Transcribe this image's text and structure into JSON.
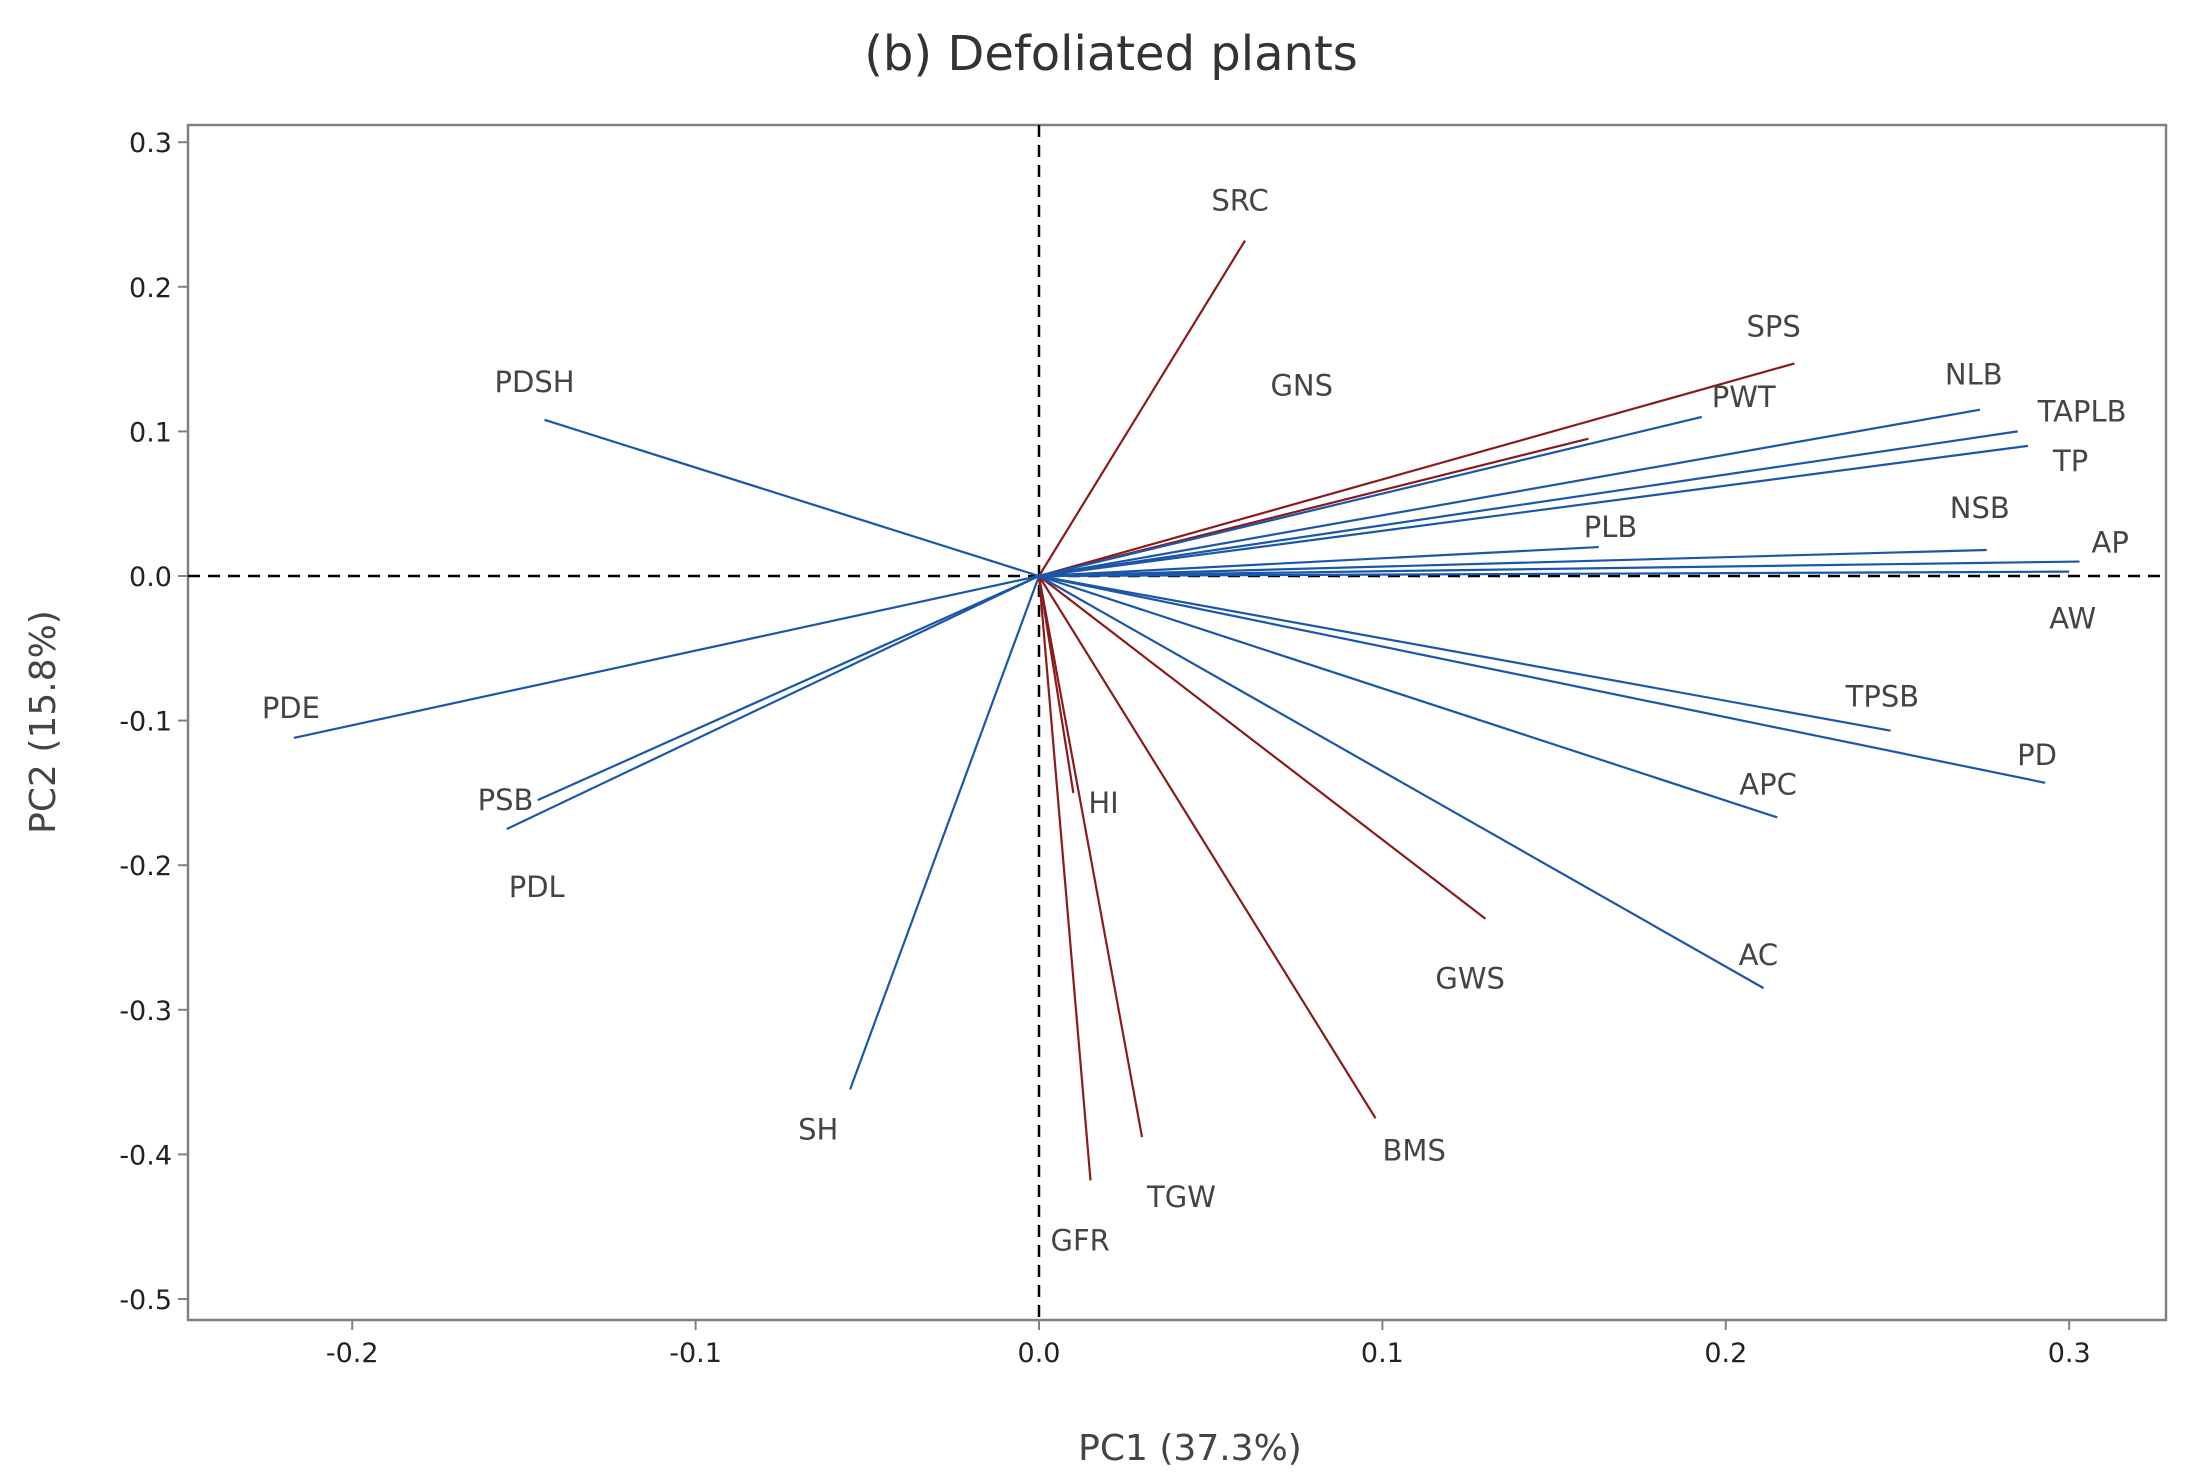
{
  "chart_data": {
    "type": "scatter",
    "subtype": "pca-loading-vectors",
    "title": "(b) Defoliated plants",
    "xlabel": "PC1 (37.3%)",
    "ylabel": "PC2 (15.8%)",
    "xlim": [
      -0.25,
      0.335
    ],
    "ylim": [
      -0.51,
      0.31
    ],
    "xticks": [
      "-0.2",
      "-0.1",
      "0.0",
      "0.1",
      "0.2",
      "0.3"
    ],
    "xtick_values": [
      -0.2,
      -0.1,
      0.0,
      0.1,
      0.2,
      0.3
    ],
    "yticks": [
      "0.3",
      "0.2",
      "0.1",
      "0.0",
      "-0.1",
      "-0.2",
      "-0.3",
      "-0.4",
      "-0.5"
    ],
    "ytick_values": [
      0.3,
      0.2,
      0.1,
      0.0,
      -0.1,
      -0.2,
      -0.3,
      -0.4,
      -0.5
    ],
    "reference_lines": {
      "x": 0,
      "y": 0,
      "style": "dashed"
    },
    "colors": {
      "blue": "#1a57a8",
      "red": "#8b1a1a",
      "frame": "#808080",
      "text": "#444444"
    },
    "series": [
      {
        "name": "SRC",
        "x": 0.06,
        "y": 0.232,
        "color": "red"
      },
      {
        "name": "SPS",
        "x": 0.22,
        "y": 0.147,
        "color": "red"
      },
      {
        "name": "GNS",
        "x": 0.16,
        "y": 0.095,
        "color": "red"
      },
      {
        "name": "HI",
        "x": 0.01,
        "y": -0.15,
        "color": "red"
      },
      {
        "name": "GFR",
        "x": 0.015,
        "y": -0.418,
        "color": "red"
      },
      {
        "name": "TGW",
        "x": 0.03,
        "y": -0.388,
        "color": "red"
      },
      {
        "name": "BMS",
        "x": 0.098,
        "y": -0.375,
        "color": "red"
      },
      {
        "name": "GWS",
        "x": 0.13,
        "y": -0.237,
        "color": "red"
      },
      {
        "name": "PWT",
        "x": 0.193,
        "y": 0.11,
        "color": "blue"
      },
      {
        "name": "NLB",
        "x": 0.274,
        "y": 0.115,
        "color": "blue"
      },
      {
        "name": "TAPLB",
        "x": 0.285,
        "y": 0.1,
        "color": "blue"
      },
      {
        "name": "TP",
        "x": 0.288,
        "y": 0.09,
        "color": "blue"
      },
      {
        "name": "PLB",
        "x": 0.163,
        "y": 0.02,
        "color": "blue"
      },
      {
        "name": "NSB",
        "x": 0.276,
        "y": 0.018,
        "color": "blue"
      },
      {
        "name": "AP",
        "x": 0.303,
        "y": 0.01,
        "color": "blue"
      },
      {
        "name": "AW",
        "x": 0.3,
        "y": 0.003,
        "color": "blue"
      },
      {
        "name": "TPSB",
        "x": 0.248,
        "y": -0.107,
        "color": "blue"
      },
      {
        "name": "PD",
        "x": 0.293,
        "y": -0.143,
        "color": "blue"
      },
      {
        "name": "APC",
        "x": 0.215,
        "y": -0.167,
        "color": "blue"
      },
      {
        "name": "AC",
        "x": 0.211,
        "y": -0.285,
        "color": "blue"
      },
      {
        "name": "PDSH",
        "x": -0.144,
        "y": 0.108,
        "color": "blue"
      },
      {
        "name": "PDE",
        "x": -0.217,
        "y": -0.112,
        "color": "blue"
      },
      {
        "name": "PSB",
        "x": -0.146,
        "y": -0.155,
        "color": "blue"
      },
      {
        "name": "PDL",
        "x": -0.155,
        "y": -0.175,
        "color": "blue"
      },
      {
        "name": "SH",
        "x": -0.055,
        "y": -0.355,
        "color": "blue"
      }
    ]
  }
}
